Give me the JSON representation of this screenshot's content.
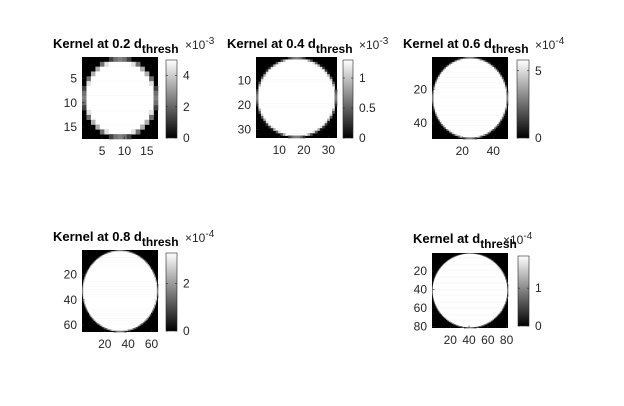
{
  "figure": {
    "background": "#ffffff",
    "text_color": "#262626"
  },
  "chart_data": [
    {
      "type": "heatmap",
      "title_prefix": "Kernel at 0.2 d",
      "title_subscript": "thresh",
      "matrix_size": 17,
      "x_ticks": [
        5,
        10,
        15
      ],
      "y_ticks": [
        5,
        10,
        15
      ],
      "colorbar": {
        "ticks": [
          "0",
          "2",
          "4"
        ],
        "tick_values": [
          0,
          2,
          4
        ],
        "max": 5.0,
        "exponent_base": "×10",
        "exponent": "-3"
      },
      "colormap": "gray"
    },
    {
      "type": "heatmap",
      "title_prefix": "Kernel at 0.4 d",
      "title_subscript": "thresh",
      "matrix_size": 33,
      "x_ticks": [
        10,
        20,
        30
      ],
      "y_ticks": [
        10,
        20,
        30
      ],
      "colorbar": {
        "ticks": [
          "0",
          "0.5",
          "1"
        ],
        "tick_values": [
          0,
          0.5,
          1
        ],
        "max": 1.3,
        "exponent_base": "×10",
        "exponent": "-3"
      },
      "colormap": "gray"
    },
    {
      "type": "heatmap",
      "title_prefix": "Kernel at 0.6 d",
      "title_subscript": "thresh",
      "matrix_size": 49,
      "x_ticks": [
        20,
        40
      ],
      "y_ticks": [
        20,
        40
      ],
      "colorbar": {
        "ticks": [
          "0",
          "5"
        ],
        "tick_values": [
          0,
          5
        ],
        "max": 5.8,
        "exponent_base": "×10",
        "exponent": "-4"
      },
      "colormap": "gray"
    },
    {
      "type": "heatmap",
      "title_prefix": "Kernel at 0.8 d",
      "title_subscript": "thresh",
      "matrix_size": 65,
      "x_ticks": [
        20,
        40,
        60
      ],
      "y_ticks": [
        20,
        40,
        60
      ],
      "colorbar": {
        "ticks": [
          "0",
          "2"
        ],
        "tick_values": [
          0,
          2
        ],
        "max": 3.3,
        "exponent_base": "×10",
        "exponent": "-4"
      },
      "colormap": "gray"
    },
    {
      "type": "heatmap",
      "title_prefix": "Kernel at d",
      "title_subscript": "thresh",
      "matrix_size": 81,
      "x_ticks": [
        20,
        40,
        60,
        80
      ],
      "y_ticks": [
        20,
        40,
        60,
        80
      ],
      "colorbar": {
        "ticks": [
          "0",
          "1"
        ],
        "tick_values": [
          0,
          1
        ],
        "max": 1.85,
        "exponent_base": "×10",
        "exponent": "-4"
      },
      "colormap": "gray"
    }
  ]
}
